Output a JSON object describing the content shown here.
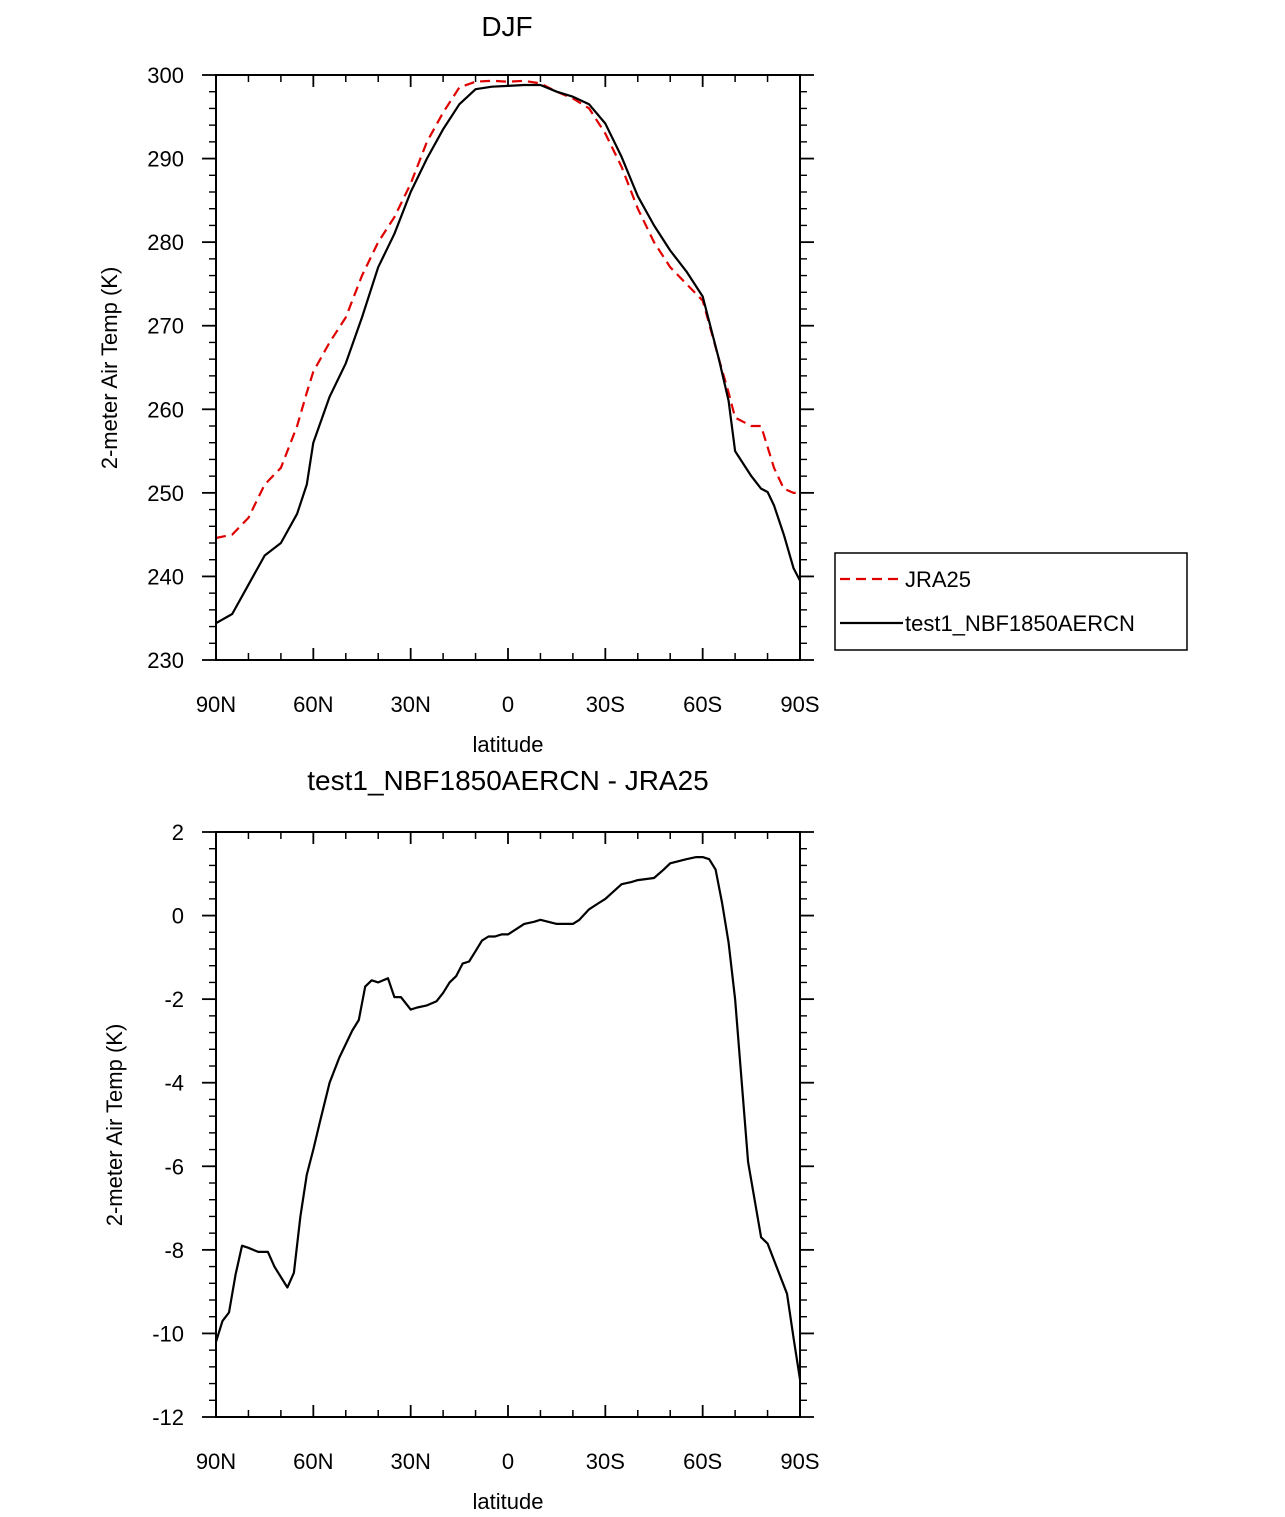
{
  "chart_data": [
    {
      "type": "line",
      "title": "DJF",
      "xlabel": "latitude",
      "ylabel": "2-meter Air Temp (K)",
      "xlim": [
        90,
        -90
      ],
      "ylim": [
        230,
        300
      ],
      "x_tick_values": [
        90,
        60,
        30,
        0,
        -30,
        -60,
        -90
      ],
      "x_tick_labels": [
        "90N",
        "60N",
        "30N",
        "0",
        "30S",
        "60S",
        "90S"
      ],
      "y_tick_values": [
        230,
        240,
        250,
        260,
        270,
        280,
        290,
        300
      ],
      "y_tick_labels": [
        "230",
        "240",
        "250",
        "260",
        "270",
        "280",
        "290",
        "300"
      ],
      "legend_position": "right",
      "series": [
        {
          "name": "JRA25",
          "color": "#e00000",
          "dashed": true,
          "x": [
            90,
            85,
            80,
            75,
            70,
            65,
            62,
            60,
            55,
            50,
            45,
            40,
            35,
            30,
            25,
            20,
            15,
            10,
            5,
            0,
            -5,
            -10,
            -15,
            -20,
            -25,
            -30,
            -35,
            -40,
            -45,
            -50,
            -55,
            -60,
            -65,
            -68,
            -70,
            -75,
            -78,
            -82,
            -85,
            -88,
            -90
          ],
          "y": [
            244.6,
            245,
            247,
            251,
            253,
            258,
            262,
            264.5,
            268,
            271,
            276,
            280,
            283,
            287,
            292,
            295.5,
            298.5,
            299.2,
            299.3,
            299.2,
            299.3,
            299,
            298,
            297.2,
            296,
            293,
            289,
            284,
            280,
            277,
            275,
            273,
            266,
            262,
            259,
            258,
            258,
            253,
            250.5,
            250,
            250
          ]
        },
        {
          "name": "test1_NBF1850AERCN",
          "color": "#000000",
          "dashed": false,
          "x": [
            90,
            85,
            80,
            75,
            70,
            65,
            62,
            60,
            55,
            50,
            45,
            40,
            35,
            30,
            25,
            20,
            15,
            10,
            5,
            0,
            -5,
            -10,
            -15,
            -20,
            -25,
            -30,
            -35,
            -40,
            -45,
            -50,
            -55,
            -60,
            -65,
            -68,
            -70,
            -75,
            -78,
            -80,
            -82,
            -85,
            -88,
            -90
          ],
          "y": [
            234.4,
            235.5,
            239,
            242.5,
            244,
            247.5,
            251,
            256,
            261.5,
            265.5,
            271,
            277,
            281,
            286,
            290,
            293.5,
            296.5,
            298.3,
            298.6,
            298.7,
            298.8,
            298.8,
            298,
            297.4,
            296.5,
            294.2,
            290.2,
            285.5,
            282,
            279,
            276.5,
            273.5,
            266,
            261,
            255,
            252,
            250.5,
            250.1,
            248.5,
            245,
            241,
            239.5
          ]
        }
      ]
    },
    {
      "type": "line",
      "title": "test1_NBF1850AERCN - JRA25",
      "xlabel": "latitude",
      "ylabel": "2-meter Air Temp (K)",
      "xlim": [
        90,
        -90
      ],
      "ylim": [
        -12,
        2
      ],
      "x_tick_values": [
        90,
        60,
        30,
        0,
        -30,
        -60,
        -90
      ],
      "x_tick_labels": [
        "90N",
        "60N",
        "30N",
        "0",
        "30S",
        "60S",
        "90S"
      ],
      "y_tick_values": [
        -12,
        -10,
        -8,
        -6,
        -4,
        -2,
        0,
        2
      ],
      "y_tick_labels": [
        "-12",
        "-10",
        "-8",
        "-6",
        "-4",
        "-2",
        "0",
        "2"
      ],
      "series": [
        {
          "name": "test1_NBF1850AERCN - JRA25",
          "color": "#000000",
          "dashed": false,
          "x": [
            90,
            88,
            86,
            84,
            82,
            80,
            77,
            74,
            72,
            68,
            66,
            64,
            62,
            60,
            58,
            55,
            52,
            48,
            46,
            44,
            42,
            40,
            37,
            35,
            33,
            30,
            28,
            25,
            22,
            20,
            18,
            16,
            14,
            12,
            10,
            8,
            6,
            4,
            2,
            0,
            -5,
            -8,
            -10,
            -15,
            -20,
            -22,
            -25,
            -28,
            -30,
            -35,
            -38,
            -40,
            -45,
            -48,
            -50,
            -55,
            -58,
            -60,
            -62,
            -64,
            -66,
            -68,
            -70,
            -74,
            -78,
            -80,
            -83,
            -86,
            -88,
            -90
          ],
          "y": [
            -10.2,
            -9.7,
            -9.5,
            -8.6,
            -7.9,
            -7.95,
            -8.05,
            -8.05,
            -8.4,
            -8.9,
            -8.55,
            -7.2,
            -6.2,
            -5.6,
            -4.95,
            -4.0,
            -3.4,
            -2.75,
            -2.5,
            -1.7,
            -1.55,
            -1.6,
            -1.5,
            -1.95,
            -1.95,
            -2.25,
            -2.2,
            -2.15,
            -2.05,
            -1.85,
            -1.6,
            -1.45,
            -1.15,
            -1.1,
            -0.85,
            -0.6,
            -0.5,
            -0.5,
            -0.45,
            -0.45,
            -0.2,
            -0.15,
            -0.1,
            -0.2,
            -0.2,
            -0.1,
            0.15,
            0.3,
            0.4,
            0.75,
            0.8,
            0.85,
            0.9,
            1.1,
            1.25,
            1.35,
            1.4,
            1.4,
            1.35,
            1.1,
            0.3,
            -0.65,
            -2.0,
            -5.9,
            -7.7,
            -7.85,
            -8.45,
            -9.05,
            -10.1,
            -11.1
          ]
        }
      ]
    }
  ]
}
